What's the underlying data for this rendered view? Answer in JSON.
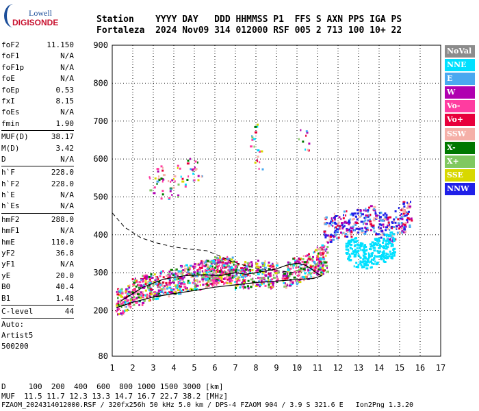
{
  "logo": {
    "line1": "Lowell",
    "line2": "DIGISONDE"
  },
  "header": {
    "line1": "Station    YYYY DAY   DDD HHMMSS P1  FFS S AXN PPS IGA PS",
    "line2": "Fortaleza  2024 Nov09 314 012000 RSF 005 2 713 100 10+ 22"
  },
  "params": {
    "group1": [
      {
        "label": "foF2",
        "value": "11.150"
      },
      {
        "label": "foF1",
        "value": "N/A"
      },
      {
        "label": "foF1p",
        "value": "N/A"
      },
      {
        "label": "foE",
        "value": "N/A"
      },
      {
        "label": "foEp",
        "value": "0.53"
      },
      {
        "label": "fxI",
        "value": "8.15"
      },
      {
        "label": "foEs",
        "value": "N/A"
      },
      {
        "label": "fmin",
        "value": "1.90"
      }
    ],
    "group2": [
      {
        "label": "MUF(D)",
        "value": "38.17"
      },
      {
        "label": "M(D)",
        "value": "3.42"
      },
      {
        "label": "D",
        "value": "N/A"
      }
    ],
    "group3": [
      {
        "label": "h`F",
        "value": "228.0"
      },
      {
        "label": "h`F2",
        "value": "228.0"
      },
      {
        "label": "h`E",
        "value": "N/A"
      },
      {
        "label": "h`Es",
        "value": "N/A"
      }
    ],
    "group4": [
      {
        "label": "hmF2",
        "value": "288.0"
      },
      {
        "label": "hmF1",
        "value": "N/A"
      },
      {
        "label": "hmE",
        "value": "110.0"
      },
      {
        "label": "yF2",
        "value": "36.8"
      },
      {
        "label": "yF1",
        "value": "N/A"
      },
      {
        "label": "yE",
        "value": "20.0"
      },
      {
        "label": "B0",
        "value": "40.4"
      },
      {
        "label": "B1",
        "value": "1.48"
      }
    ],
    "clevel": {
      "label": "C-level",
      "value": "44"
    },
    "auto": [
      "Auto:",
      "Artist5",
      "500200"
    ]
  },
  "legend": [
    {
      "label": "NoVal",
      "color": "#8c8c8c"
    },
    {
      "label": "NNE",
      "color": "#00e0ff"
    },
    {
      "label": "E",
      "color": "#4aa8f0"
    },
    {
      "label": "W",
      "color": "#b000b0"
    },
    {
      "label": "Vo-",
      "color": "#ff3ca0"
    },
    {
      "label": "Vo+",
      "color": "#e8003c"
    },
    {
      "label": "SSW",
      "color": "#f5b0a8"
    },
    {
      "label": "X-",
      "color": "#007800"
    },
    {
      "label": "X+",
      "color": "#80c860"
    },
    {
      "label": "SSE",
      "color": "#d8d800"
    },
    {
      "label": "NNW",
      "color": "#2020e8"
    }
  ],
  "footer": {
    "line1": "D     100  200  400  600  800 1000 1500 3000 [km]",
    "line2": "MUF  11.5 11.7 12.3 13.3 14.7 16.7 22.7 38.2 [MHz]",
    "line3": "FZAOM_2024314012000.RSF / 320fx256h 50 kHz 5.0 km / DPS-4 FZAOM 904 / 3.9 S 321.6 E   Ion2Png 1.3.20"
  },
  "chart_data": {
    "type": "scatter",
    "xlim": [
      1,
      17
    ],
    "ylim": [
      80,
      900
    ],
    "x_ticks": [
      "1",
      "2",
      "3",
      "4",
      "5",
      "6",
      "7",
      "8",
      "9",
      "10",
      "11",
      "12",
      "13",
      "14",
      "15",
      "16",
      "17"
    ],
    "y_ticks": [
      "900",
      "800",
      "700",
      "600",
      "500",
      "400",
      "300",
      "200",
      "80"
    ],
    "y_tick_values": [
      900,
      800,
      700,
      600,
      500,
      400,
      300,
      200,
      80
    ],
    "grid": true,
    "series": [
      {
        "name": "trace",
        "values": [
          [
            1.4,
            225
          ],
          [
            1.8,
            238
          ],
          [
            2.2,
            252
          ],
          [
            2.6,
            262
          ],
          [
            3.0,
            268
          ],
          [
            3.5,
            275
          ],
          [
            4.0,
            280
          ],
          [
            4.5,
            288
          ],
          [
            5.0,
            292
          ],
          [
            5.5,
            300
          ],
          [
            6.0,
            305
          ],
          [
            6.5,
            305
          ],
          [
            6.8,
            310
          ],
          [
            7.2,
            292
          ],
          [
            7.6,
            296
          ],
          [
            8.2,
            300
          ],
          [
            8.8,
            295
          ],
          [
            9.5,
            298
          ],
          [
            10.0,
            306
          ],
          [
            10.5,
            318
          ],
          [
            11.0,
            330
          ],
          [
            11.2,
            340
          ],
          [
            11.5,
            415
          ],
          [
            12.0,
            425
          ],
          [
            12.5,
            430
          ],
          [
            13.0,
            440
          ],
          [
            13.5,
            445
          ],
          [
            14.0,
            430
          ],
          [
            14.5,
            420
          ],
          [
            15.0,
            440
          ],
          [
            15.3,
            455
          ],
          [
            12.6,
            360
          ],
          [
            13.0,
            352
          ],
          [
            13.5,
            348
          ],
          [
            14.0,
            360
          ],
          [
            14.5,
            375
          ],
          [
            3.0,
            540
          ],
          [
            3.3,
            560
          ],
          [
            3.6,
            515
          ],
          [
            4.0,
            530
          ],
          [
            4.4,
            560
          ],
          [
            4.8,
            575
          ],
          [
            5.1,
            570
          ],
          [
            7.8,
            665
          ],
          [
            8.1,
            605
          ],
          [
            10.3,
            655
          ],
          [
            6.2,
            310
          ],
          [
            5.8,
            300
          ]
        ]
      },
      {
        "name": "profile",
        "values": [
          [
            1.2,
            208
          ],
          [
            2.0,
            222
          ],
          [
            3.0,
            236
          ],
          [
            4.0,
            245
          ],
          [
            5.0,
            253
          ],
          [
            6.0,
            262
          ],
          [
            7.0,
            268
          ],
          [
            8.0,
            274
          ],
          [
            9.0,
            278
          ],
          [
            10.0,
            282
          ],
          [
            10.8,
            285
          ],
          [
            11.2,
            292
          ],
          [
            11.0,
            298
          ],
          [
            10.7,
            310
          ],
          [
            10.4,
            320
          ],
          [
            10.0,
            325
          ],
          [
            9.5,
            320
          ],
          [
            9.0,
            310
          ],
          [
            8.5,
            305
          ],
          [
            8.0,
            300
          ],
          [
            7.5,
            296
          ],
          [
            7.0,
            300
          ],
          [
            6.6,
            296
          ],
          [
            6.2,
            292
          ],
          [
            5.5,
            295
          ],
          [
            4.5,
            292
          ],
          [
            3.5,
            283
          ],
          [
            2.5,
            262
          ],
          [
            1.4,
            225
          ]
        ]
      },
      {
        "name": "density",
        "values": [
          [
            1.0,
            458
          ],
          [
            1.6,
            420
          ],
          [
            2.4,
            392
          ],
          [
            3.2,
            378
          ],
          [
            4.0,
            368
          ],
          [
            4.8,
            362
          ],
          [
            5.6,
            358
          ],
          [
            6.2,
            345
          ],
          [
            6.8,
            330
          ],
          [
            7.4,
            320
          ],
          [
            8.0,
            312
          ],
          [
            9.0,
            305
          ],
          [
            10.0,
            300
          ]
        ]
      }
    ]
  }
}
